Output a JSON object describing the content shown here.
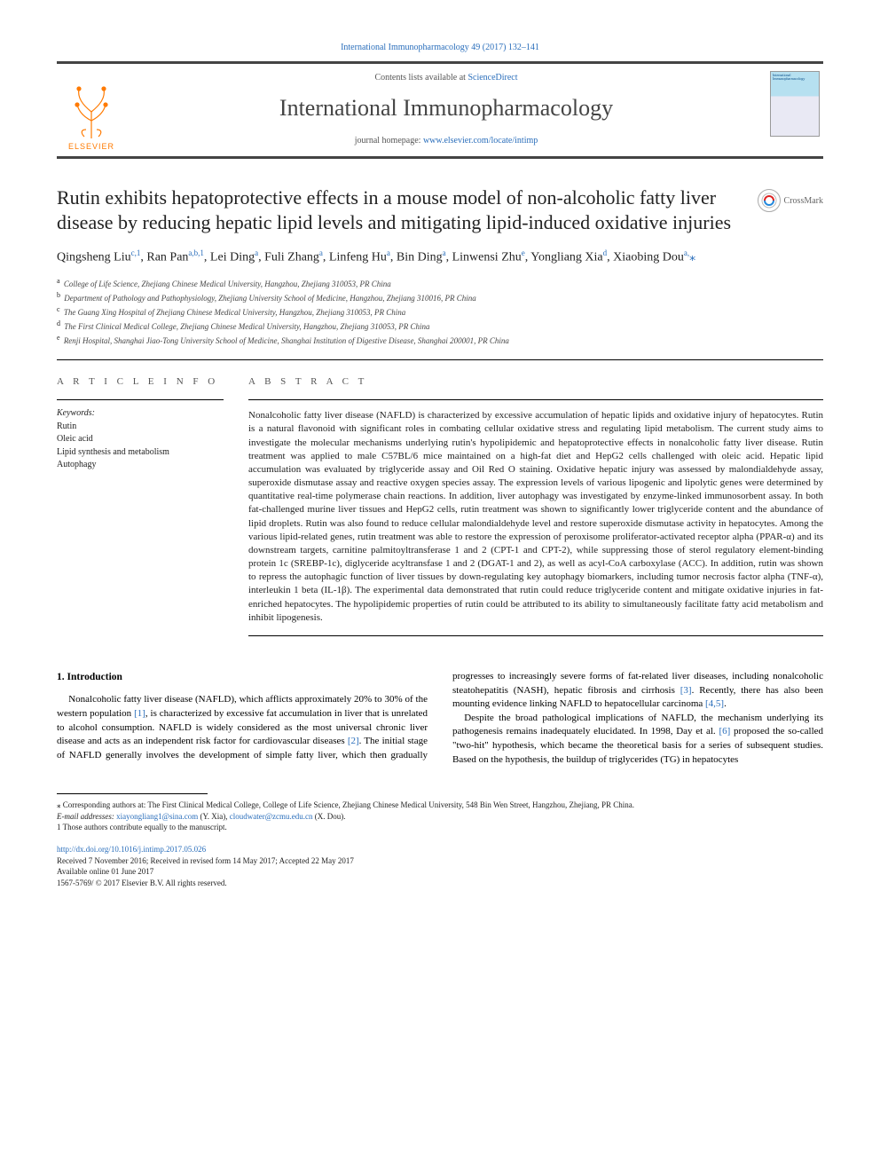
{
  "header": {
    "citation": "International Immunopharmacology 49 (2017) 132–141",
    "contents_prefix": "Contents lists available at ",
    "contents_link": "ScienceDirect",
    "journal": "International Immunopharmacology",
    "homepage_prefix": "journal homepage: ",
    "homepage_link": "www.elsevier.com/locate/intimp",
    "publisher": "ELSEVIER",
    "cover_title": "International Immunopharmacology"
  },
  "crossmark": "CrossMark",
  "title": "Rutin exhibits hepatoprotective effects in a mouse model of non-alcoholic fatty liver disease by reducing hepatic lipid levels and mitigating lipid-induced oxidative injuries",
  "authors_html": "Qingsheng Liu<sup>c,1</sup>, Ran Pan<sup>a,b,1</sup>, Lei Ding<sup>a</sup>, Fuli Zhang<sup>a</sup>, Linfeng Hu<sup>a</sup>, Bin Ding<sup>a</sup>, Linwensi Zhu<sup>e</sup>, Yongliang Xia<sup>d</sup>, Xiaobing Dou<sup>a,</sup><span class='corr'>⁎</span>",
  "affiliations": [
    {
      "key": "a",
      "text": "College of Life Science, Zhejiang Chinese Medical University, Hangzhou, Zhejiang 310053, PR China"
    },
    {
      "key": "b",
      "text": "Department of Pathology and Pathophysiology, Zhejiang University School of Medicine, Hangzhou, Zhejiang 310016, PR China"
    },
    {
      "key": "c",
      "text": "The Guang Xing Hospital of Zhejiang Chinese Medical University, Hangzhou, Zhejiang 310053, PR China"
    },
    {
      "key": "d",
      "text": "The First Clinical Medical College, Zhejiang Chinese Medical University, Hangzhou, Zhejiang 310053, PR China"
    },
    {
      "key": "e",
      "text": "Renji Hospital, Shanghai Jiao-Tong University School of Medicine, Shanghai Institution of Digestive Disease, Shanghai 200001, PR China"
    }
  ],
  "article_info": {
    "head": "A R T I C L E  I N F O",
    "keywords_label": "Keywords:",
    "keywords": [
      "Rutin",
      "Oleic acid",
      "Lipid synthesis and metabolism",
      "Autophagy"
    ]
  },
  "abstract": {
    "head": "A B S T R A C T",
    "text": "Nonalcoholic fatty liver disease (NAFLD) is characterized by excessive accumulation of hepatic lipids and oxidative injury of hepatocytes. Rutin is a natural flavonoid with significant roles in combating cellular oxidative stress and regulating lipid metabolism. The current study aims to investigate the molecular mechanisms underlying rutin's hypolipidemic and hepatoprotective effects in nonalcoholic fatty liver disease. Rutin treatment was applied to male C57BL/6 mice maintained on a high-fat diet and HepG2 cells challenged with oleic acid. Hepatic lipid accumulation was evaluated by triglyceride assay and Oil Red O staining. Oxidative hepatic injury was assessed by malondialdehyde assay, superoxide dismutase assay and reactive oxygen species assay. The expression levels of various lipogenic and lipolytic genes were determined by quantitative real-time polymerase chain reactions. In addition, liver autophagy was investigated by enzyme-linked immunosorbent assay. In both fat-challenged murine liver tissues and HepG2 cells, rutin treatment was shown to significantly lower triglyceride content and the abundance of lipid droplets. Rutin was also found to reduce cellular malondialdehyde level and restore superoxide dismutase activity in hepatocytes. Among the various lipid-related genes, rutin treatment was able to restore the expression of peroxisome proliferator-activated receptor alpha (PPAR-α) and its downstream targets, carnitine palmitoyltransferase 1 and 2 (CPT-1 and CPT-2), while suppressing those of sterol regulatory element-binding protein 1c (SREBP-1c), diglyceride acyltransfase 1 and 2 (DGAT-1 and 2), as well as acyl-CoA carboxylase (ACC). In addition, rutin was shown to repress the autophagic function of liver tissues by down-regulating key autophagy biomarkers, including tumor necrosis factor alpha (TNF-α), interleukin 1 beta (IL-1β). The experimental data demonstrated that rutin could reduce triglyceride content and mitigate oxidative injuries in fat-enriched hepatocytes. The hypolipidemic properties of rutin could be attributed to its ability to simultaneously facilitate fatty acid metabolism and inhibit lipogenesis."
  },
  "intro": {
    "head": "1. Introduction",
    "p1_a": "Nonalcoholic fatty liver disease (NAFLD), which afflicts approximately 20% to 30% of the western population ",
    "p1_cite1": "[1]",
    "p1_b": ", is characterized by excessive fat accumulation in liver that is unrelated to alcohol consumption. NAFLD is widely considered as the most universal chronic liver disease and acts as an independent risk factor for cardiovascular diseases ",
    "p1_cite2": "[2]",
    "p1_c": ". The initial stage of NAFLD generally involves the development of simple fatty liver, which then gradually ",
    "p2_a": "progresses to increasingly severe forms of fat-related liver diseases, including nonalcoholic steatohepatitis (NASH), hepatic fibrosis and cirrhosis ",
    "p2_cite3": "[3]",
    "p2_b": ". Recently, there has also been mounting evidence linking NAFLD to hepatocellular carcinoma ",
    "p2_cite45": "[4,5]",
    "p2_c": ".",
    "p3_a": "Despite the broad pathological implications of NAFLD, the mechanism underlying its pathogenesis remains inadequately elucidated. In 1998, Day et al. ",
    "p3_cite6": "[6]",
    "p3_b": " proposed the so-called \"two-hit\" hypothesis, which became the theoretical basis for a series of subsequent studies. Based on the hypothesis, the buildup of triglycerides (TG) in hepatocytes"
  },
  "footnotes": {
    "corr": "⁎ Corresponding authors at: The First Clinical Medical College, College of Life Science, Zhejiang Chinese Medical University, 548 Bin Wen Street, Hangzhou, Zhejiang, PR China.",
    "emails_label": "E-mail addresses: ",
    "email1": "xiayongliang1@sina.com",
    "email1_who": " (Y. Xia), ",
    "email2": "cloudwater@zcmu.edu.cn",
    "email2_who": " (X. Dou).",
    "equal": "1 Those authors contribute equally to the manuscript."
  },
  "doi": {
    "link": "http://dx.doi.org/10.1016/j.intimp.2017.05.026",
    "history": "Received 7 November 2016; Received in revised form 14 May 2017; Accepted 22 May 2017",
    "online": "Available online 01 June 2017",
    "issn_cp": "1567-5769/ © 2017 Elsevier B.V. All rights reserved."
  },
  "colors": {
    "link": "#2a6ebb",
    "rule": "#000000",
    "accent_orange": "#ff7a00",
    "text": "#222222"
  }
}
